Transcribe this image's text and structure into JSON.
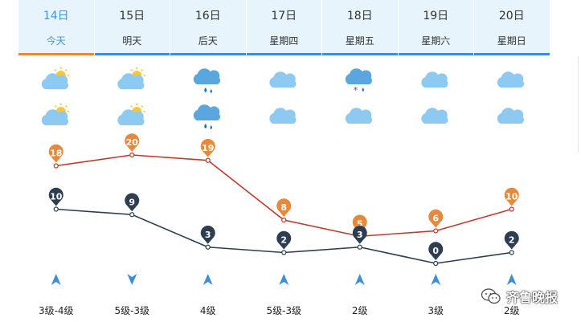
{
  "days": [
    {
      "date": "14日",
      "weekday": "今天",
      "day_icon": "sun-cloud-icon",
      "night_icon": "sun-cloud-icon",
      "high": 18,
      "low": 10,
      "wind_level": "3级-4级",
      "wind_dir": "north"
    },
    {
      "date": "15日",
      "weekday": "明天",
      "day_icon": "sun-cloud-icon",
      "night_icon": "sun-cloud-icon",
      "high": 20,
      "low": 9,
      "wind_level": "5级-3级",
      "wind_dir": "south"
    },
    {
      "date": "16日",
      "weekday": "后天",
      "day_icon": "rain-icon",
      "night_icon": "rain-icon",
      "high": 19,
      "low": 3,
      "wind_level": "4级",
      "wind_dir": "north"
    },
    {
      "date": "17日",
      "weekday": "星期四",
      "day_icon": "cloud-icon",
      "night_icon": "cloud-icon",
      "high": 8,
      "low": 2,
      "wind_level": "5级-3级",
      "wind_dir": "north"
    },
    {
      "date": "18日",
      "weekday": "星期五",
      "day_icon": "sleet-icon",
      "night_icon": "cloud-icon",
      "high": 5,
      "low": 3,
      "wind_level": "2级",
      "wind_dir": "north"
    },
    {
      "date": "19日",
      "weekday": "星期六",
      "day_icon": "cloud-icon",
      "night_icon": "cloud-icon",
      "high": 6,
      "low": 0,
      "wind_level": "3级",
      "wind_dir": "north"
    },
    {
      "date": "20日",
      "weekday": "星期日",
      "day_icon": "cloud-icon",
      "night_icon": "cloud-icon",
      "high": 10,
      "low": 2,
      "wind_level": "2级",
      "wind_dir": "north"
    }
  ],
  "chart_data": {
    "type": "line",
    "categories": [
      "14日",
      "15日",
      "16日",
      "17日",
      "18日",
      "19日",
      "20日"
    ],
    "series": [
      {
        "values": [
          18,
          20,
          19,
          8,
          5,
          6,
          10
        ],
        "color": "#c0392b"
      },
      {
        "values": [
          10,
          9,
          3,
          2,
          3,
          0,
          2
        ],
        "color": "#2c3e50"
      }
    ],
    "marker_colors": {
      "high": "#e7893a",
      "low": "#2c3e50"
    },
    "xlabel": "",
    "ylabel": ""
  },
  "colors": {
    "header_bg": "#e7f4fc",
    "header_bar": "#3a8fd8",
    "today_bar": "#e7893a",
    "today_text": "#3a9ad9",
    "arrow": "#3a8fd8",
    "cloud": "#8ec9f2",
    "rain_cloud": "#5aa7e0",
    "sun": "#f8c737"
  },
  "watermark": {
    "text": "齐鲁晚报",
    "icon": "wechat-icon"
  }
}
